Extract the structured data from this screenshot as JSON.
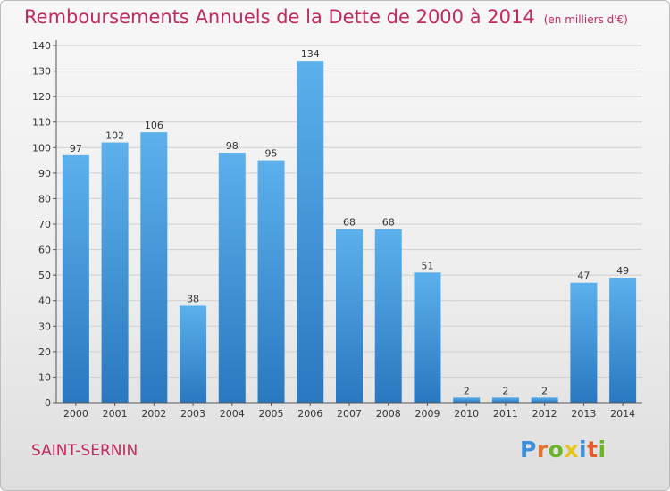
{
  "chart_data": {
    "type": "bar",
    "title": "Remboursements Annuels de la Dette de 2000 à 2014",
    "subtitle": "(en milliers d'€)",
    "categories": [
      "2000",
      "2001",
      "2002",
      "2003",
      "2004",
      "2005",
      "2006",
      "2007",
      "2008",
      "2009",
      "2010",
      "2011",
      "2012",
      "2013",
      "2014"
    ],
    "values": [
      97,
      102,
      106,
      38,
      98,
      95,
      134,
      68,
      68,
      51,
      2,
      2,
      2,
      47,
      49
    ],
    "ylim": [
      0,
      140
    ],
    "yticks": [
      0,
      10,
      20,
      30,
      40,
      50,
      60,
      70,
      80,
      90,
      100,
      110,
      120,
      130,
      140
    ],
    "grid": true,
    "bar_color": "#3a94db",
    "legend": "none"
  },
  "footer": {
    "region": "SAINT-SERNIN",
    "logo_letters": [
      "P",
      "r",
      "o",
      "x",
      "i",
      "t",
      "i"
    ],
    "logo_colors": [
      "#3d8fd8",
      "#e8702a",
      "#6cb52b",
      "#e8c31e",
      "#3d8fd8",
      "#e85b2a",
      "#6cb52b"
    ]
  },
  "colors": {
    "title": "#c02a62",
    "axis_text": "#333333",
    "grid": "#cfcfcf"
  }
}
